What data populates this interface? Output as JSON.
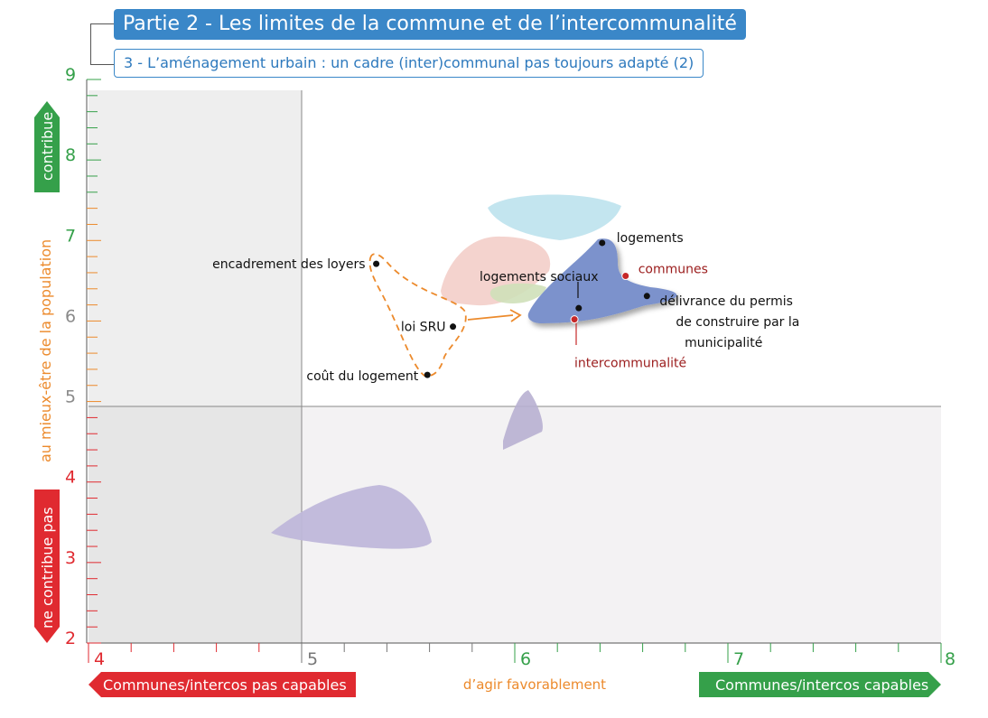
{
  "header": {
    "title": "Partie 2 - Les limites de la commune et de l’intercommunalité",
    "subtitle": "3 - L’aménagement urbain : un cadre (inter)communal pas toujours adapté (2)"
  },
  "colors": {
    "green": "#35a04a",
    "red": "#e02a30",
    "orange": "#ec8a2c",
    "blue_header": "#3a87c8",
    "point_black": "#111111",
    "point_red": "#c62828"
  },
  "chart_data": {
    "type": "scatter",
    "xlim": [
      4,
      8
    ],
    "ylim": [
      2,
      9
    ],
    "x_ticks": [
      "4",
      "5",
      "6",
      "7",
      "8"
    ],
    "y_ticks": [
      "2",
      "3",
      "4",
      "5",
      "6",
      "7",
      "8",
      "9"
    ],
    "quadrant_lines": {
      "x": 5,
      "y": 4.9
    },
    "y_axis_labels": {
      "top": "contribue",
      "middle": "au mieux-être de la population",
      "bottom": "ne contribue pas"
    },
    "x_axis_labels": {
      "left": "Communes/intercos pas capables",
      "middle": "d’agir favorablement",
      "right": "Communes/intercos capables"
    },
    "points": [
      {
        "label": "encadrement des loyers",
        "x": 5.35,
        "y": 6.71,
        "color": "black"
      },
      {
        "label": "loi SRU",
        "x": 5.71,
        "y": 5.93,
        "color": "black"
      },
      {
        "label": "coût du logement",
        "x": 5.59,
        "y": 5.33,
        "color": "black"
      },
      {
        "label": "logements",
        "x": 6.41,
        "y": 6.97,
        "color": "black"
      },
      {
        "label": "logements sociaux",
        "x": 6.3,
        "y": 6.16,
        "color": "black"
      },
      {
        "label": "délivrance du permis de construire par la municipalité",
        "x": 6.62,
        "y": 6.31,
        "color": "black"
      },
      {
        "label": "communes",
        "x": 6.52,
        "y": 6.56,
        "color": "red"
      },
      {
        "label": "intercommunalité",
        "x": 6.28,
        "y": 6.02,
        "color": "red"
      }
    ]
  }
}
